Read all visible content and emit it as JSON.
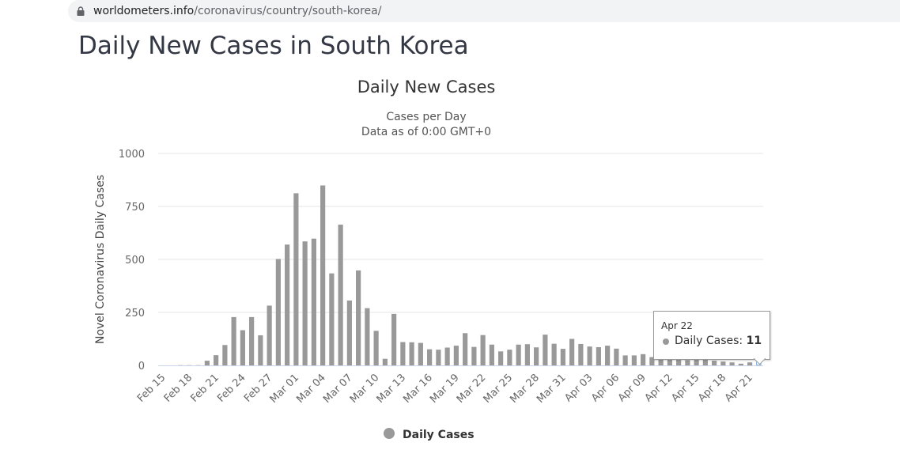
{
  "browser": {
    "url_host": "worldometers.info",
    "url_path": "/coronavirus/country/south-korea/"
  },
  "page_title": "Daily New Cases in South Korea",
  "chart_data": {
    "type": "bar",
    "title": "Daily New Cases",
    "subtitle_lines": [
      "Cases per Day",
      "Data as of 0:00 GMT+0"
    ],
    "ylabel": "Novel Coronavirus Daily Cases",
    "xlabel": "",
    "ylim": [
      0,
      1000
    ],
    "yticks": [
      0,
      250,
      500,
      750,
      1000
    ],
    "grid": true,
    "legend_position": "bottom-center",
    "bar_color": "#999999",
    "categories": [
      "Feb 15",
      "Feb 16",
      "Feb 17",
      "Feb 18",
      "Feb 19",
      "Feb 20",
      "Feb 21",
      "Feb 22",
      "Feb 23",
      "Feb 24",
      "Feb 25",
      "Feb 26",
      "Feb 27",
      "Feb 28",
      "Feb 29",
      "Mar 01",
      "Mar 02",
      "Mar 03",
      "Mar 04",
      "Mar 05",
      "Mar 06",
      "Mar 07",
      "Mar 08",
      "Mar 09",
      "Mar 10",
      "Mar 11",
      "Mar 12",
      "Mar 13",
      "Mar 14",
      "Mar 15",
      "Mar 16",
      "Mar 17",
      "Mar 18",
      "Mar 19",
      "Mar 20",
      "Mar 21",
      "Mar 22",
      "Mar 23",
      "Mar 24",
      "Mar 25",
      "Mar 26",
      "Mar 27",
      "Mar 28",
      "Mar 29",
      "Mar 30",
      "Mar 31",
      "Apr 01",
      "Apr 02",
      "Apr 03",
      "Apr 04",
      "Apr 05",
      "Apr 06",
      "Apr 07",
      "Apr 08",
      "Apr 09",
      "Apr 10",
      "Apr 11",
      "Apr 12",
      "Apr 13",
      "Apr 14",
      "Apr 15",
      "Apr 16",
      "Apr 17",
      "Apr 18",
      "Apr 19",
      "Apr 20",
      "Apr 21",
      "Apr 22"
    ],
    "tick_labels": [
      "Feb 15",
      "Feb 18",
      "Feb 21",
      "Feb 24",
      "Feb 27",
      "Mar 01",
      "Mar 04",
      "Mar 07",
      "Mar 10",
      "Mar 13",
      "Mar 16",
      "Mar 19",
      "Mar 22",
      "Mar 25",
      "Mar 28",
      "Mar 31",
      "Apr 03",
      "Apr 06",
      "Apr 09",
      "Apr 12",
      "Apr 15",
      "Apr 18",
      "Apr 21"
    ],
    "series": [
      {
        "name": "Daily Cases",
        "values": [
          0,
          0,
          1,
          1,
          1,
          22,
          48,
          96,
          228,
          166,
          228,
          142,
          282,
          502,
          570,
          812,
          585,
          598,
          849,
          434,
          664,
          306,
          448,
          270,
          163,
          31,
          243,
          110,
          109,
          106,
          76,
          74,
          84,
          93,
          152,
          87,
          143,
          98,
          66,
          74,
          98,
          100,
          85,
          145,
          102,
          78,
          125,
          101,
          89,
          86,
          93,
          79,
          47,
          47,
          53,
          39,
          27,
          30,
          33,
          25,
          27,
          27,
          22,
          18,
          14,
          8,
          14,
          11
        ]
      }
    ],
    "tooltip": {
      "date": "Apr 22",
      "series_label": "Daily Cases:",
      "value": "11"
    }
  }
}
